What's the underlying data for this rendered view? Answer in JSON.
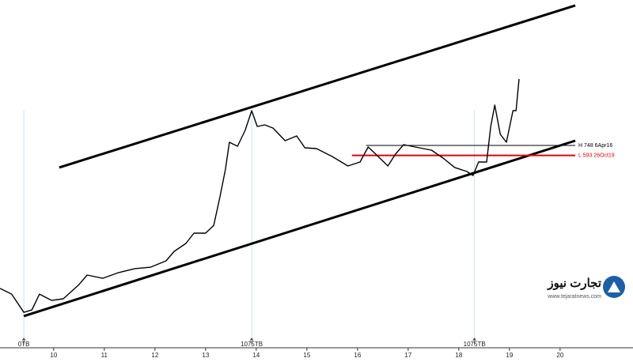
{
  "chart_data": {
    "type": "line",
    "log_scale": true,
    "xlim": [
      8.94,
      21.44
    ],
    "ylim": [
      6.7,
      22150
    ],
    "xticks": [
      10,
      11,
      12,
      13,
      14,
      15,
      16,
      17,
      18,
      19,
      20
    ],
    "series": [
      {
        "color": "#000000",
        "x": [
          8.94,
          9.17,
          9.41,
          9.57,
          9.72,
          9.96,
          10.19,
          10.5,
          10.66,
          10.97,
          11.28,
          11.6,
          11.91,
          12.22,
          12.38,
          12.61,
          12.77,
          13.0,
          13.16,
          13.28,
          13.39,
          13.47,
          13.63,
          13.78,
          13.91,
          14.02,
          14.17,
          14.33,
          14.57,
          14.8,
          14.96,
          15.19,
          15.5,
          15.81,
          16.05,
          16.21,
          16.36,
          16.6,
          16.75,
          16.91,
          17.22,
          17.46,
          17.69,
          17.92,
          18.16,
          18.28,
          18.39,
          18.55,
          18.63,
          18.71,
          18.82,
          18.94,
          19.07,
          19.13,
          19.19
        ],
        "values": [
          26.7,
          23.4,
          15.3,
          16.2,
          23.4,
          20.2,
          21.0,
          29.2,
          36.5,
          33.8,
          38.6,
          42.3,
          43.8,
          50.8,
          63.4,
          76.2,
          96.8,
          96.8,
          116,
          222,
          423,
          805,
          734,
          1061,
          1682,
          1164,
          1207,
          1122,
          835,
          933,
          708,
          695,
          578,
          463,
          508,
          721,
          611,
          463,
          611,
          762,
          708,
          670,
          557,
          447,
          407,
          371,
          508,
          508,
          1164,
          1914,
          968,
          805,
          1682,
          1682,
          3516
        ]
      }
    ],
    "channel": [
      {
        "x": [
          10.11,
          20.3
        ],
        "values": [
          447,
          19490
        ]
      },
      {
        "x": [
          9.41,
          20.3
        ],
        "values": [
          14,
          835
        ]
      }
    ],
    "levels": [
      {
        "label": "H 748 6Apr16",
        "value": 748,
        "x": [
          16.17,
          20.3
        ],
        "color": "#000000"
      },
      {
        "label": "L 593 26Oct19",
        "value": 593,
        "x": [
          15.89,
          20.3
        ],
        "color": "#e0000f"
      }
    ],
    "markers": [
      {
        "x": 9.41,
        "label": "0TB"
      },
      {
        "x": 13.91,
        "label": "1075TB"
      },
      {
        "x": 18.31,
        "label": "1075TB"
      }
    ],
    "watermark": {
      "name": "تجارت نیوز",
      "url": "www.tejaratnews.com"
    }
  }
}
